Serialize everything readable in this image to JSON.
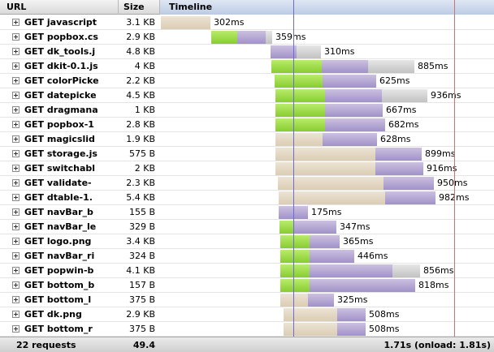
{
  "header": {
    "url": "URL",
    "size": "Size",
    "timeline": "Timeline"
  },
  "requests": [
    {
      "url": "GET javascript",
      "size": "3.1 KB",
      "time": "302ms",
      "segments": [
        [
          198,
          0,
          61
        ]
      ]
    },
    {
      "url": "GET popbox.cs",
      "size": "2.9 KB",
      "time": "359ms",
      "segments": [
        [
          260,
          1,
          32
        ],
        [
          292,
          2,
          35
        ],
        [
          327,
          3,
          8
        ]
      ]
    },
    {
      "url": "GET dk_tools.j",
      "size": "4.8 KB",
      "time": "310ms",
      "segments": [
        [
          333,
          2,
          32
        ],
        [
          365,
          3,
          30
        ]
      ]
    },
    {
      "url": "GET dkit-0.1.js",
      "size": "4 KB",
      "time": "885ms",
      "segments": [
        [
          334,
          1,
          62
        ],
        [
          396,
          2,
          57
        ],
        [
          453,
          3,
          57
        ]
      ]
    },
    {
      "url": "GET colorPicke",
      "size": "2.2 KB",
      "time": "625ms",
      "segments": [
        [
          338,
          1,
          59
        ],
        [
          397,
          2,
          66
        ]
      ]
    },
    {
      "url": "GET datepicke",
      "size": "4.5 KB",
      "time": "936ms",
      "segments": [
        [
          339,
          1,
          61
        ],
        [
          400,
          2,
          70
        ],
        [
          470,
          3,
          56
        ]
      ]
    },
    {
      "url": "GET dragmana",
      "size": "1 KB",
      "time": "667ms",
      "segments": [
        [
          339,
          1,
          61
        ],
        [
          400,
          2,
          71
        ]
      ]
    },
    {
      "url": "GET popbox-1",
      "size": "2.8 KB",
      "time": "682ms",
      "segments": [
        [
          339,
          1,
          61
        ],
        [
          400,
          2,
          74
        ]
      ]
    },
    {
      "url": "GET magicslid",
      "size": "1.9 KB",
      "time": "628ms",
      "segments": [
        [
          339,
          0,
          58
        ],
        [
          397,
          2,
          67
        ]
      ]
    },
    {
      "url": "GET storage.js",
      "size": "575 B",
      "time": "899ms",
      "segments": [
        [
          339,
          0,
          123
        ],
        [
          462,
          2,
          57
        ]
      ]
    },
    {
      "url": "GET switchabl",
      "size": "2 KB",
      "time": "916ms",
      "segments": [
        [
          339,
          0,
          123
        ],
        [
          462,
          2,
          59
        ]
      ]
    },
    {
      "url": "GET validate-",
      "size": "2.3 KB",
      "time": "950ms",
      "segments": [
        [
          342,
          0,
          130
        ],
        [
          472,
          2,
          62
        ]
      ]
    },
    {
      "url": "GET dtable-1.",
      "size": "5.4 KB",
      "time": "982ms",
      "segments": [
        [
          343,
          0,
          131
        ],
        [
          474,
          2,
          62
        ]
      ]
    },
    {
      "url": "GET navBar_b",
      "size": "155 B",
      "time": "175ms",
      "segments": [
        [
          343,
          2,
          36
        ]
      ]
    },
    {
      "url": "GET navBar_le",
      "size": "329 B",
      "time": "347ms",
      "segments": [
        [
          344,
          1,
          18
        ],
        [
          362,
          2,
          52
        ]
      ]
    },
    {
      "url": "GET logo.png",
      "size": "3.4 KB",
      "time": "365ms",
      "segments": [
        [
          345,
          1,
          36
        ],
        [
          381,
          2,
          37
        ]
      ]
    },
    {
      "url": "GET navBar_ri",
      "size": "324 B",
      "time": "446ms",
      "segments": [
        [
          345,
          1,
          36
        ],
        [
          381,
          2,
          55
        ]
      ]
    },
    {
      "url": "GET popwin-b",
      "size": "4.1 KB",
      "time": "856ms",
      "segments": [
        [
          345,
          1,
          36
        ],
        [
          381,
          2,
          102
        ],
        [
          483,
          3,
          34
        ]
      ]
    },
    {
      "url": "GET bottom_b",
      "size": "157 B",
      "time": "818ms",
      "segments": [
        [
          345,
          1,
          36
        ],
        [
          381,
          2,
          130
        ]
      ]
    },
    {
      "url": "GET bottom_l",
      "size": "375 B",
      "time": "325ms",
      "segments": [
        [
          345,
          0,
          34
        ],
        [
          379,
          2,
          32
        ]
      ]
    },
    {
      "url": "GET dk.png",
      "size": "2.9 KB",
      "time": "508ms",
      "segments": [
        [
          349,
          0,
          66
        ],
        [
          415,
          2,
          35
        ]
      ]
    },
    {
      "url": "GET bottom_r",
      "size": "375 B",
      "time": "508ms",
      "segments": [
        [
          349,
          0,
          66
        ],
        [
          415,
          2,
          35
        ]
      ]
    }
  ],
  "footer": {
    "count": "22 requests",
    "total_size": "49.4 KB",
    "total_time": "1.71s (onload: 1.81s)"
  },
  "colors": {
    "blocking": "#e5d9c4",
    "connecting": "#a0dc48",
    "waiting": "#b0a4d2",
    "receiving": "#d2d2d2",
    "dom_content_loaded_line": "#6a6ad8",
    "load_line": "#d07070"
  }
}
